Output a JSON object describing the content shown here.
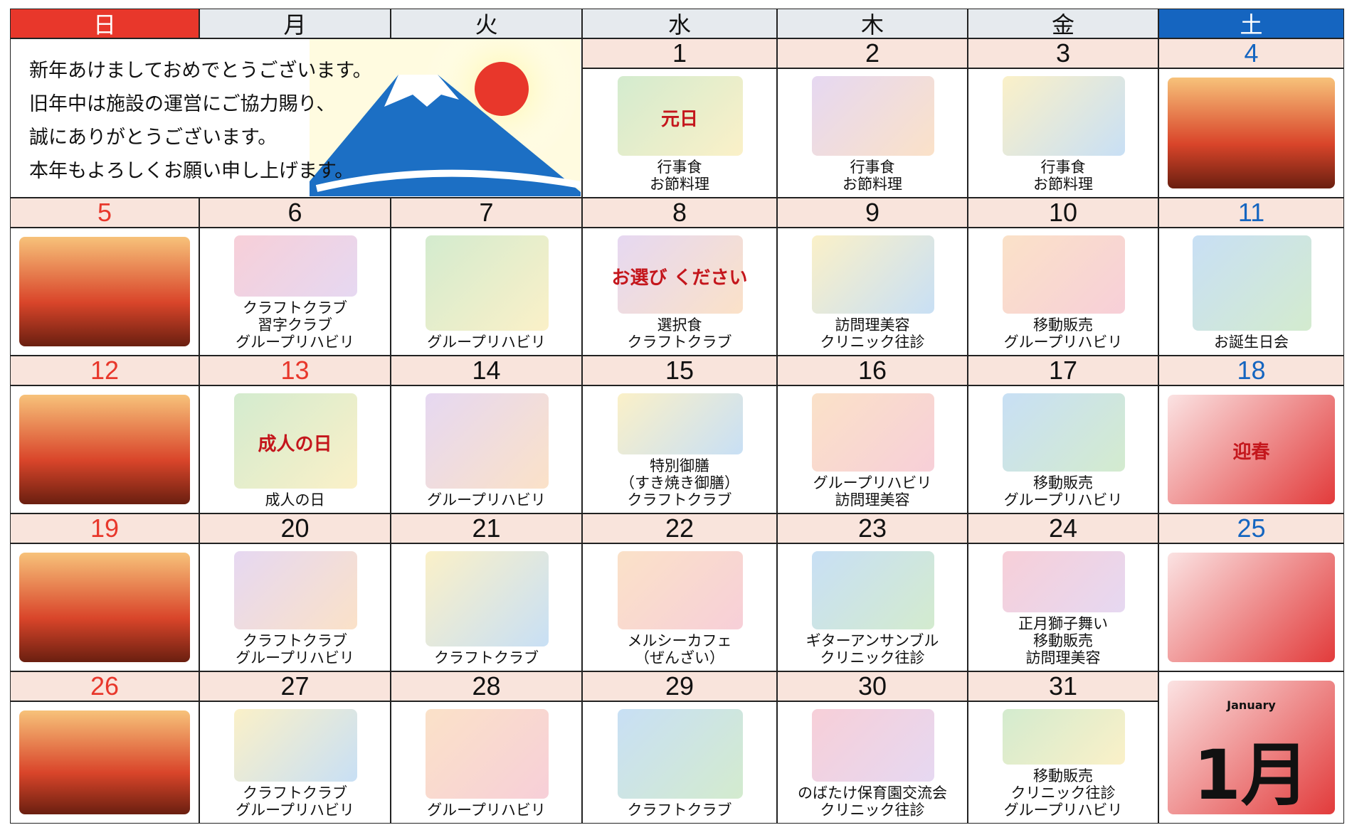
{
  "header": {
    "days": [
      "日",
      "月",
      "火",
      "水",
      "木",
      "金",
      "土"
    ]
  },
  "greeting": {
    "lines": [
      "新年あけましておめでとうございます。",
      "旧年中は施設の運営にご協力賜り、",
      "誠にありがとうございます。",
      "本年もよろしくお願い申し上げます。"
    ]
  },
  "weeks": [
    [
      {
        "date": 1,
        "badge": "元日",
        "events": [
          "行事食",
          "お節料理"
        ]
      },
      {
        "date": 2,
        "events": [
          "行事食",
          "お節料理"
        ]
      },
      {
        "date": 3,
        "events": [
          "行事食",
          "お節料理"
        ]
      },
      {
        "date": 4,
        "events": []
      }
    ],
    [
      {
        "date": 5,
        "events": []
      },
      {
        "date": 6,
        "events": [
          "クラフトクラブ",
          "習字クラブ",
          "グループリハビリ"
        ]
      },
      {
        "date": 7,
        "events": [
          "グループリハビリ"
        ]
      },
      {
        "date": 8,
        "badge": "お選び ください",
        "events": [
          "選択食",
          "クラフトクラブ"
        ]
      },
      {
        "date": 9,
        "events": [
          "訪問理美容",
          "クリニック往診"
        ]
      },
      {
        "date": 10,
        "events": [
          "移動販売",
          "グループリハビリ"
        ]
      },
      {
        "date": 11,
        "events": [
          "お誕生日会"
        ]
      }
    ],
    [
      {
        "date": 12,
        "events": []
      },
      {
        "date": 13,
        "color": "#e8372b",
        "badge": "成人の日",
        "events": [
          "成人の日"
        ]
      },
      {
        "date": 14,
        "events": [
          "グループリハビリ"
        ]
      },
      {
        "date": 15,
        "events": [
          "特別御膳",
          "（すき焼き御膳）",
          "クラフトクラブ"
        ]
      },
      {
        "date": 16,
        "events": [
          "グループリハビリ",
          "訪問理美容"
        ]
      },
      {
        "date": 17,
        "events": [
          "移動販売",
          "グループリハビリ"
        ]
      },
      {
        "date": 18,
        "badge": "迎春",
        "events": []
      }
    ],
    [
      {
        "date": 19,
        "events": []
      },
      {
        "date": 20,
        "events": [
          "クラフトクラブ",
          "グループリハビリ"
        ]
      },
      {
        "date": 21,
        "events": [
          "クラフトクラブ"
        ]
      },
      {
        "date": 22,
        "events": [
          "メルシーカフェ",
          "（ぜんざい）"
        ]
      },
      {
        "date": 23,
        "events": [
          "ギターアンサンブル",
          "クリニック往診"
        ]
      },
      {
        "date": 24,
        "events": [
          "正月獅子舞い",
          "移動販売",
          "訪問理美容"
        ]
      },
      {
        "date": 25,
        "events": []
      }
    ],
    [
      {
        "date": 26,
        "events": []
      },
      {
        "date": 27,
        "events": [
          "クラフトクラブ",
          "グループリハビリ"
        ]
      },
      {
        "date": 28,
        "events": [
          "グループリハビリ"
        ]
      },
      {
        "date": 29,
        "events": [
          "クラフトクラブ"
        ]
      },
      {
        "date": 30,
        "events": [
          "のばたけ保育園交流会",
          "クリニック往診"
        ]
      },
      {
        "date": 31,
        "events": [
          "移動販売",
          "クリニック往診",
          "グループリハビリ"
        ]
      },
      {
        "badge": "1月",
        "sub": "January",
        "events": []
      }
    ]
  ]
}
